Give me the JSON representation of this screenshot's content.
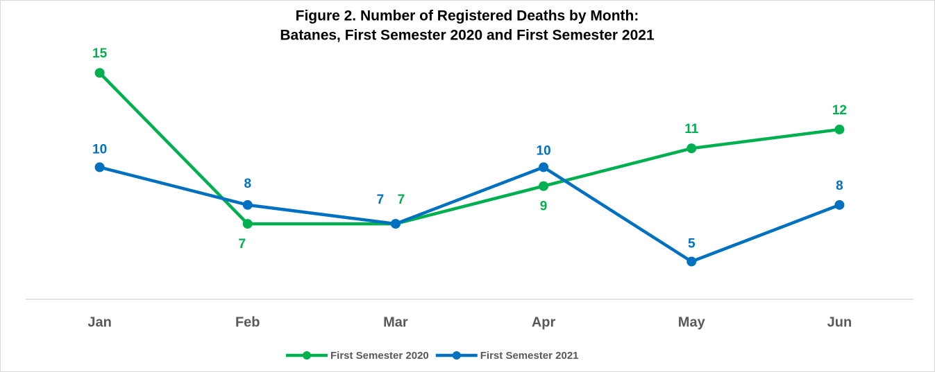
{
  "chart_data": {
    "type": "line",
    "title": [
      "Figure 2. Number of  Registered Deaths by Month:",
      "Batanes, First Semester 2020 and First Semester 2021"
    ],
    "categories": [
      "Jan",
      "Feb",
      "Mar",
      "Apr",
      "May",
      "Jun"
    ],
    "series": [
      {
        "name": "First Semester 2020",
        "color": "#00b050",
        "values": [
          15,
          7,
          7,
          9,
          11,
          12
        ]
      },
      {
        "name": "First Semester 2021",
        "color": "#0070c0",
        "values": [
          10,
          8,
          7,
          10,
          5,
          8
        ]
      }
    ],
    "ylim": [
      3,
      16
    ],
    "legend": "bottom"
  }
}
